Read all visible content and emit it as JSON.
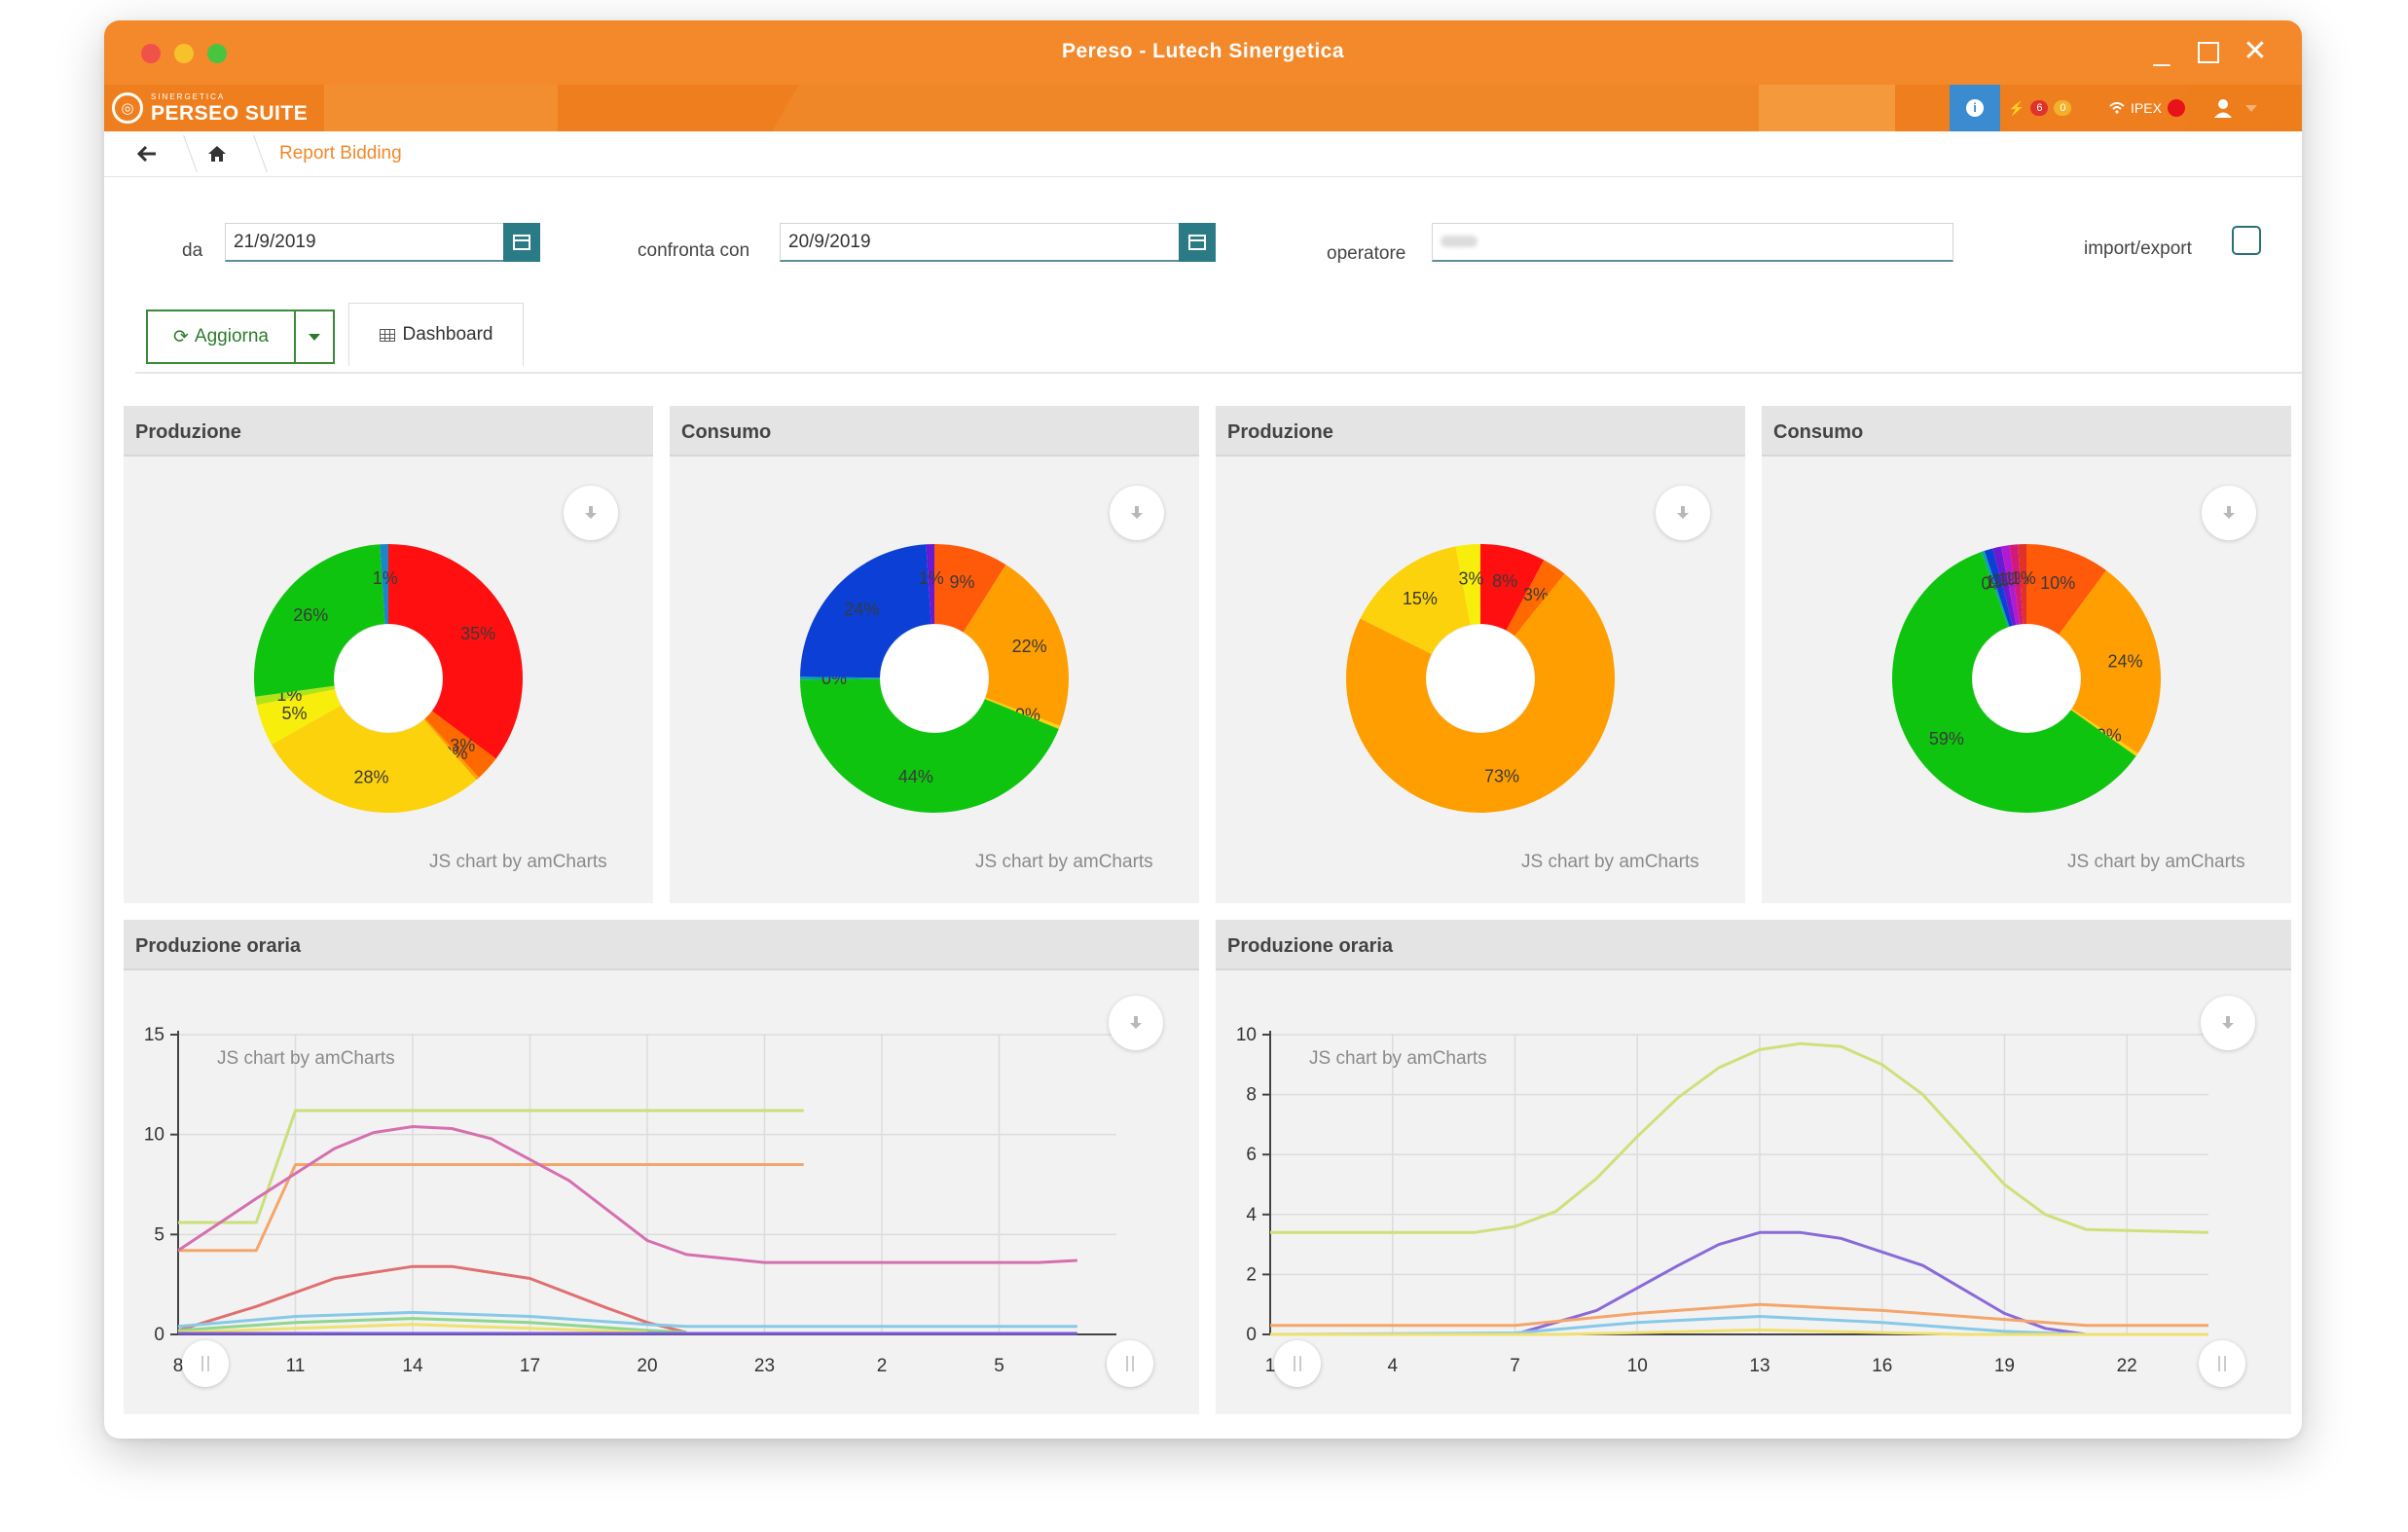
{
  "window": {
    "title": "Pereso - Lutech Sinergetica",
    "min_glyph": "_",
    "close_glyph": "✕"
  },
  "appbar": {
    "logo_small": "SINERGETICA",
    "logo_big": "PERSEO SUITE",
    "info_glyph": "i",
    "alert_count_red": "6",
    "alert_count_yellow": "0",
    "ipex_label": "IPEX",
    "status_color": "#e8121a"
  },
  "breadcrumb": {
    "back_glyph": "🡐",
    "current": "Report Bidding"
  },
  "filters": {
    "da_label": "da",
    "da_value": "21/9/2019",
    "confronta_label": "confronta con",
    "confronta_value": "20/9/2019",
    "operatore_label": "operatore",
    "import_export_label": "import/export"
  },
  "actions": {
    "aggiorna_label": "Aggiorna",
    "aggiorna_icon": "⟳",
    "dashboard_tab": "Dashboard"
  },
  "credit": "JS chart by amCharts",
  "colors": {
    "accent": "#f3892b",
    "teal": "#2b7b86",
    "green": "#3a8a3a"
  },
  "panels": {
    "pie1_title": "Produzione",
    "pie2_title": "Consumo",
    "pie3_title": "Produzione",
    "pie4_title": "Consumo",
    "line1_title": "Produzione oraria",
    "line2_title": "Produzione oraria"
  },
  "chart_data": [
    {
      "type": "pie",
      "title": "Produzione",
      "slices": [
        {
          "label": "35%",
          "value": 35,
          "color": "#ff0f0f"
        },
        {
          "label": "3%",
          "value": 3,
          "color": "#ff6a00"
        },
        {
          "label": "0%",
          "value": 0.4,
          "color": "#ff9d00"
        },
        {
          "label": "28%",
          "value": 28,
          "color": "#fcd20c"
        },
        {
          "label": "5%",
          "value": 5,
          "color": "#f7ee0b"
        },
        {
          "label": "1%",
          "value": 1,
          "color": "#b1e316"
        },
        {
          "label": "26%",
          "value": 26,
          "color": "#0fc40f"
        },
        {
          "label": "1%",
          "value": 1,
          "color": "#1a86c9"
        }
      ]
    },
    {
      "type": "pie",
      "title": "Consumo",
      "slices": [
        {
          "label": "9%",
          "value": 9,
          "color": "#ff5a0a"
        },
        {
          "label": "22%",
          "value": 22,
          "color": "#ff9e00"
        },
        {
          "label": "0%",
          "value": 0.4,
          "color": "#fcd20c"
        },
        {
          "label": "44%",
          "value": 44,
          "color": "#0fc40f"
        },
        {
          "label": "0%",
          "value": 0.4,
          "color": "#0ea5a0"
        },
        {
          "label": "24%",
          "value": 24,
          "color": "#0b3fd6"
        },
        {
          "label": "1%",
          "value": 1,
          "color": "#6a1ad1"
        }
      ]
    },
    {
      "type": "pie",
      "title": "Produzione",
      "slices": [
        {
          "label": "8%",
          "value": 8,
          "color": "#ff0f0f"
        },
        {
          "label": "3%",
          "value": 3,
          "color": "#ff6a00"
        },
        {
          "label": "73%",
          "value": 73,
          "color": "#ff9e00"
        },
        {
          "label": "15%",
          "value": 15,
          "color": "#fcd20c"
        },
        {
          "label": "3%",
          "value": 3,
          "color": "#f7ee0b"
        }
      ]
    },
    {
      "type": "pie",
      "title": "Consumo",
      "slices": [
        {
          "label": "10%",
          "value": 10,
          "color": "#ff5a0a"
        },
        {
          "label": "24%",
          "value": 24,
          "color": "#ff9e00"
        },
        {
          "label": "0%",
          "value": 0.4,
          "color": "#fcd20c"
        },
        {
          "label": "59%",
          "value": 59,
          "color": "#0fc40f"
        },
        {
          "label": "0%",
          "value": 0.4,
          "color": "#0ea5a0"
        },
        {
          "label": "1%",
          "value": 1,
          "color": "#0b3fd6"
        },
        {
          "label": "1%",
          "value": 1,
          "color": "#6a1ad1"
        },
        {
          "label": "1%",
          "value": 1,
          "color": "#b01ad1"
        },
        {
          "label": "1%",
          "value": 1,
          "color": "#d11a7a"
        },
        {
          "label": "1%",
          "value": 1,
          "color": "#e0312b"
        }
      ]
    },
    {
      "type": "line",
      "title": "Produzione oraria",
      "ylim": [
        0,
        15
      ],
      "yticks": [
        0,
        5,
        10,
        15
      ],
      "xticks": [
        "8",
        "11",
        "14",
        "17",
        "20",
        "23",
        "2",
        "5"
      ],
      "xrange": [
        8,
        32
      ],
      "series": [
        {
          "color": "#c9e07a",
          "points": [
            [
              8,
              5.6
            ],
            [
              10,
              5.6
            ],
            [
              11,
              11.2
            ],
            [
              24,
              11.2
            ]
          ]
        },
        {
          "color": "#f4a66a",
          "points": [
            [
              8,
              4.2
            ],
            [
              10,
              4.2
            ],
            [
              11,
              8.5
            ],
            [
              24,
              8.5
            ]
          ]
        },
        {
          "color": "#d66fb0",
          "points": [
            [
              8,
              4.2
            ],
            [
              10,
              6.8
            ],
            [
              12,
              9.3
            ],
            [
              13,
              10.1
            ],
            [
              14,
              10.4
            ],
            [
              15,
              10.3
            ],
            [
              16,
              9.8
            ],
            [
              18,
              7.7
            ],
            [
              19,
              6.2
            ],
            [
              20,
              4.7
            ],
            [
              21,
              4
            ],
            [
              23,
              3.6
            ],
            [
              30,
              3.6
            ],
            [
              31,
              3.7
            ]
          ]
        },
        {
          "color": "#e07070",
          "points": [
            [
              8,
              0.2
            ],
            [
              10,
              1.4
            ],
            [
              12,
              2.8
            ],
            [
              14,
              3.4
            ],
            [
              15,
              3.4
            ],
            [
              17,
              2.8
            ],
            [
              19,
              1.3
            ],
            [
              20,
              0.6
            ],
            [
              21,
              0.1
            ]
          ]
        },
        {
          "color": "#86c9e8",
          "points": [
            [
              8,
              0.4
            ],
            [
              11,
              0.9
            ],
            [
              14,
              1.1
            ],
            [
              17,
              0.9
            ],
            [
              20,
              0.5
            ],
            [
              21,
              0.4
            ],
            [
              31,
              0.4
            ]
          ]
        },
        {
          "color": "#8fd68f",
          "points": [
            [
              8,
              0.2
            ],
            [
              11,
              0.6
            ],
            [
              14,
              0.8
            ],
            [
              17,
              0.6
            ],
            [
              20,
              0.2
            ],
            [
              21,
              0.1
            ]
          ]
        },
        {
          "color": "#f0e070",
          "points": [
            [
              8,
              0.1
            ],
            [
              11,
              0.3
            ],
            [
              14,
              0.5
            ],
            [
              17,
              0.3
            ],
            [
              20,
              0.1
            ]
          ]
        },
        {
          "color": "#7a5ad8",
          "points": [
            [
              8,
              0.05
            ],
            [
              31,
              0.05
            ]
          ]
        }
      ]
    },
    {
      "type": "line",
      "title": "Produzione oraria",
      "ylim": [
        0,
        10
      ],
      "yticks": [
        0,
        2,
        4,
        6,
        8,
        10
      ],
      "xticks": [
        "1",
        "4",
        "7",
        "10",
        "13",
        "16",
        "19",
        "22"
      ],
      "xrange": [
        1,
        24
      ],
      "series": [
        {
          "color": "#cfe07a",
          "points": [
            [
              1,
              3.4
            ],
            [
              6,
              3.4
            ],
            [
              7,
              3.6
            ],
            [
              8,
              4.1
            ],
            [
              9,
              5.2
            ],
            [
              10,
              6.6
            ],
            [
              11,
              7.9
            ],
            [
              12,
              8.9
            ],
            [
              13,
              9.5
            ],
            [
              14,
              9.7
            ],
            [
              15,
              9.6
            ],
            [
              16,
              9.0
            ],
            [
              17,
              8.0
            ],
            [
              18,
              6.5
            ],
            [
              19,
              5.0
            ],
            [
              20,
              4.0
            ],
            [
              21,
              3.5
            ],
            [
              24,
              3.4
            ]
          ]
        },
        {
          "color": "#8a6ad8",
          "points": [
            [
              1,
              0
            ],
            [
              7,
              0
            ],
            [
              9,
              0.8
            ],
            [
              11,
              2.3
            ],
            [
              12,
              3
            ],
            [
              13,
              3.4
            ],
            [
              14,
              3.4
            ],
            [
              15,
              3.2
            ],
            [
              17,
              2.3
            ],
            [
              18,
              1.5
            ],
            [
              19,
              0.7
            ],
            [
              20,
              0.2
            ],
            [
              21,
              0
            ],
            [
              24,
              0
            ]
          ]
        },
        {
          "color": "#f4a66a",
          "points": [
            [
              1,
              0.3
            ],
            [
              7,
              0.3
            ],
            [
              10,
              0.7
            ],
            [
              13,
              1.0
            ],
            [
              16,
              0.8
            ],
            [
              19,
              0.5
            ],
            [
              21,
              0.3
            ],
            [
              24,
              0.3
            ]
          ]
        },
        {
          "color": "#86c9e8",
          "points": [
            [
              1,
              0
            ],
            [
              7,
              0.05
            ],
            [
              10,
              0.4
            ],
            [
              13,
              0.6
            ],
            [
              16,
              0.4
            ],
            [
              19,
              0.1
            ],
            [
              21,
              0
            ]
          ]
        },
        {
          "color": "#f0e070",
          "points": [
            [
              1,
              0
            ],
            [
              8,
              0
            ],
            [
              13,
              0.15
            ],
            [
              18,
              0
            ],
            [
              24,
              0
            ]
          ]
        }
      ]
    }
  ]
}
